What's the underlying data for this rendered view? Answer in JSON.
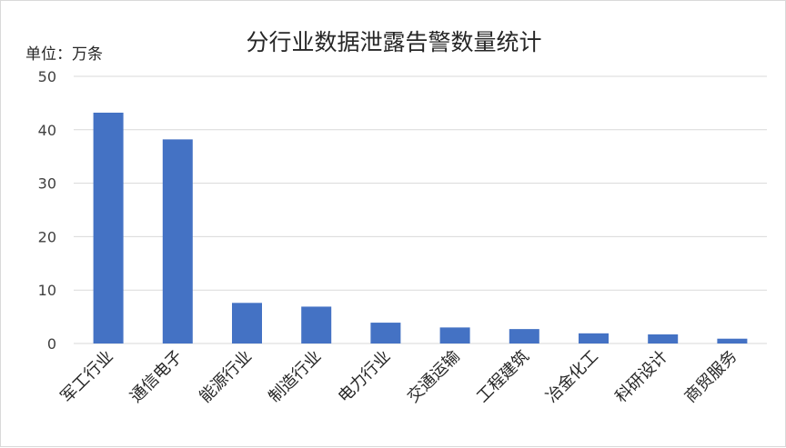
{
  "chart_data": {
    "type": "bar",
    "title": "分行业数据泄露告警数量统计",
    "unit_label": "单位：万条",
    "categories": [
      "军工行业",
      "通信电子",
      "能源行业",
      "制造行业",
      "电力行业",
      "交通运输",
      "工程建筑",
      "冶金化工",
      "科研设计",
      "商贸服务"
    ],
    "values": [
      43.2,
      38.2,
      7.6,
      6.9,
      3.9,
      3.0,
      2.7,
      1.9,
      1.7,
      0.9
    ],
    "ylim": [
      0,
      50
    ],
    "yticks": [
      "0",
      "10",
      "20",
      "30",
      "40",
      "50"
    ],
    "grid": true,
    "bar_color": "#4472c4",
    "grid_color": "#d9d9d9"
  }
}
